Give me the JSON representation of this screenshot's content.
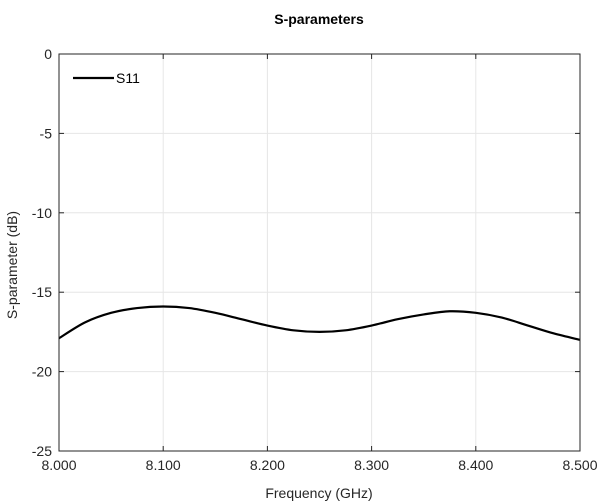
{
  "chart_data": {
    "type": "line",
    "title": "S-parameters",
    "xlabel": "Frequency (GHz)",
    "ylabel": "S-parameter (dB)",
    "xlim": [
      8.0,
      8.5
    ],
    "ylim": [
      -25,
      0
    ],
    "xticks": [
      8.0,
      8.1,
      8.2,
      8.3,
      8.4,
      8.5
    ],
    "xtick_labels": [
      "8.000",
      "8.100",
      "8.200",
      "8.300",
      "8.400",
      "8.500"
    ],
    "yticks": [
      0,
      -5,
      -10,
      -15,
      -20,
      -25
    ],
    "ytick_labels": [
      "0",
      "-5",
      "-10",
      "-15",
      "-20",
      "-25"
    ],
    "grid": true,
    "legend_position": "top-left",
    "colors": {
      "series": "#000000",
      "grid": "#e6e6e6",
      "axis": "#262626"
    },
    "series": [
      {
        "name": "S11",
        "x": [
          8.0,
          8.025,
          8.05,
          8.075,
          8.1,
          8.125,
          8.15,
          8.175,
          8.2,
          8.225,
          8.25,
          8.275,
          8.3,
          8.325,
          8.35,
          8.375,
          8.4,
          8.425,
          8.45,
          8.475,
          8.5
        ],
        "y": [
          -17.9,
          -16.9,
          -16.3,
          -16.0,
          -15.9,
          -16.0,
          -16.3,
          -16.7,
          -17.1,
          -17.4,
          -17.5,
          -17.4,
          -17.1,
          -16.7,
          -16.4,
          -16.2,
          -16.3,
          -16.6,
          -17.1,
          -17.6,
          -18.0
        ]
      }
    ]
  }
}
